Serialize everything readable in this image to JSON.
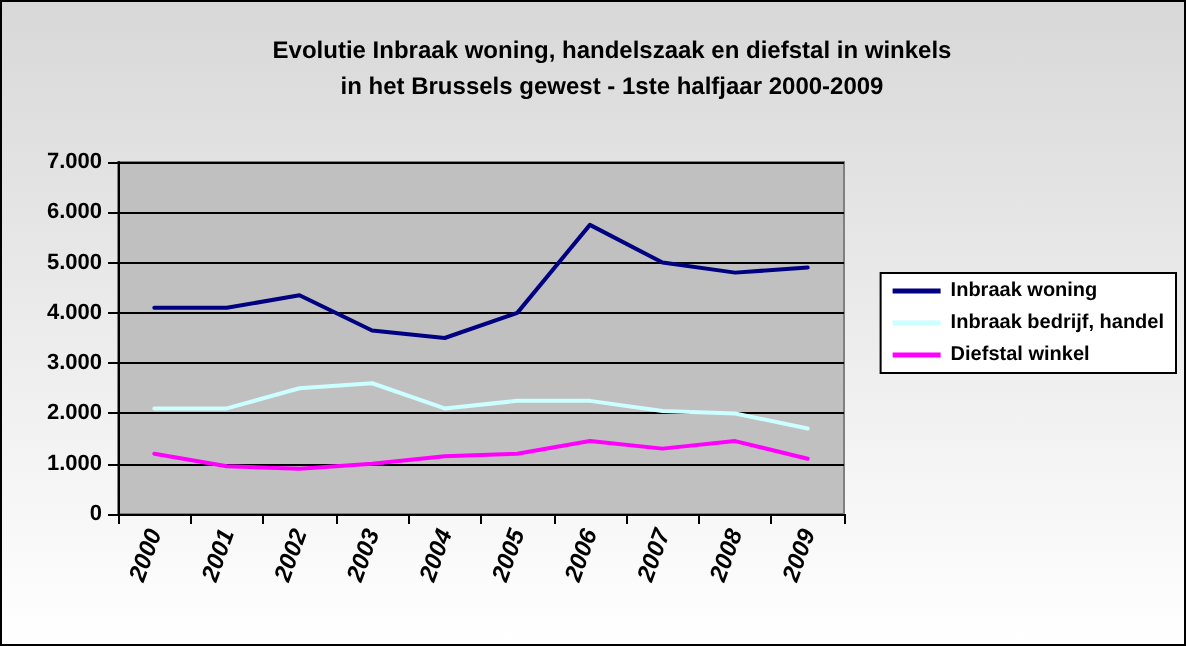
{
  "chart_data": {
    "type": "line",
    "title": "Evolutie Inbraak woning, handelszaak en diefstal in winkels\nin het Brussels gewest - 1ste halfjaar 2000-2009",
    "categories": [
      "2000",
      "2001",
      "2002",
      "2003",
      "2004",
      "2005",
      "2006",
      "2007",
      "2008",
      "2009"
    ],
    "series": [
      {
        "name": "Inbraak woning",
        "color": "#000080",
        "values": [
          4100,
          4100,
          4350,
          3650,
          3500,
          4000,
          5750,
          5000,
          4800,
          4900
        ]
      },
      {
        "name": "Inbraak bedrijf, handel",
        "color": "#ccffff",
        "values": [
          2100,
          2100,
          2500,
          2600,
          2100,
          2250,
          2250,
          2050,
          2000,
          1700
        ]
      },
      {
        "name": "Diefstal winkel",
        "color": "#ff00ff",
        "values": [
          1200,
          950,
          900,
          1000,
          1150,
          1200,
          1450,
          1300,
          1450,
          1100
        ]
      }
    ],
    "ylim": [
      0,
      7000
    ],
    "yticks": [
      {
        "value": 0,
        "label": "0"
      },
      {
        "value": 1000,
        "label": "1.000"
      },
      {
        "value": 2000,
        "label": "2.000"
      },
      {
        "value": 3000,
        "label": "3.000"
      },
      {
        "value": 4000,
        "label": "4.000"
      },
      {
        "value": 5000,
        "label": "5.000"
      },
      {
        "value": 6000,
        "label": "6.000"
      },
      {
        "value": 7000,
        "label": "7.000"
      }
    ],
    "grid": "y",
    "legend": "right",
    "marker": "none",
    "line_style": "solid"
  }
}
